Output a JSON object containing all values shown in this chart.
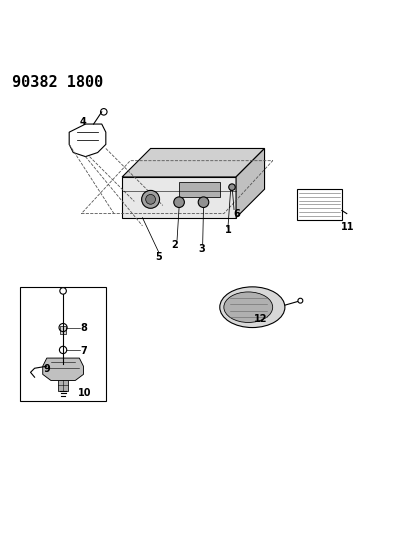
{
  "title": "90382 1800",
  "title_fontsize": 11,
  "title_fontweight": "bold",
  "bg_color": "#ffffff",
  "line_color": "#000000",
  "fig_width": 4.07,
  "fig_height": 5.33,
  "dpi": 100
}
